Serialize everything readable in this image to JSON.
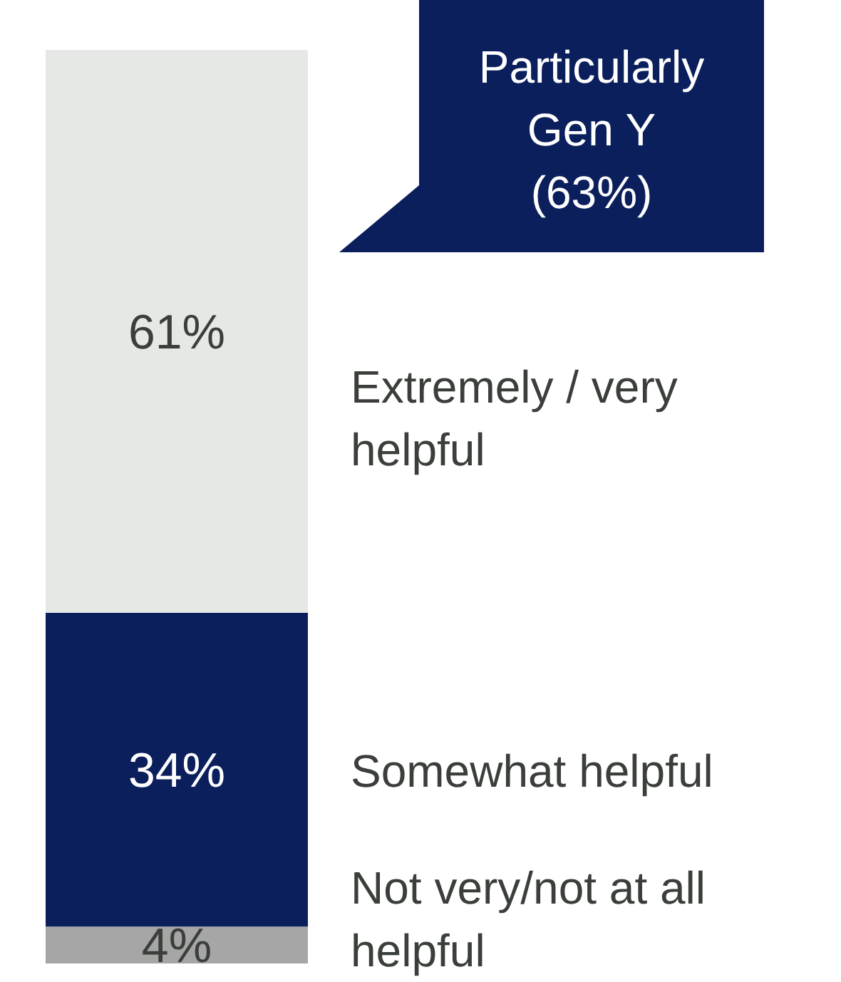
{
  "chart_data": {
    "type": "bar",
    "stacked": true,
    "categories": [
      null
    ],
    "series": [
      {
        "name": "Not very/not at all helpful",
        "color": "#a6a6a6",
        "values": [
          4
        ],
        "value_labels": [
          "4%"
        ]
      },
      {
        "name": "Somewhat helpful",
        "color": "#0b1f5c",
        "values": [
          34
        ],
        "value_labels": [
          "34%"
        ]
      },
      {
        "name": "Extremely / very helpful",
        "color": "#e6e8e6",
        "values": [
          61
        ],
        "value_labels": [
          "61%"
        ]
      }
    ],
    "annotations": [
      "Particularly\nGen Y\n(63%)"
    ]
  }
}
